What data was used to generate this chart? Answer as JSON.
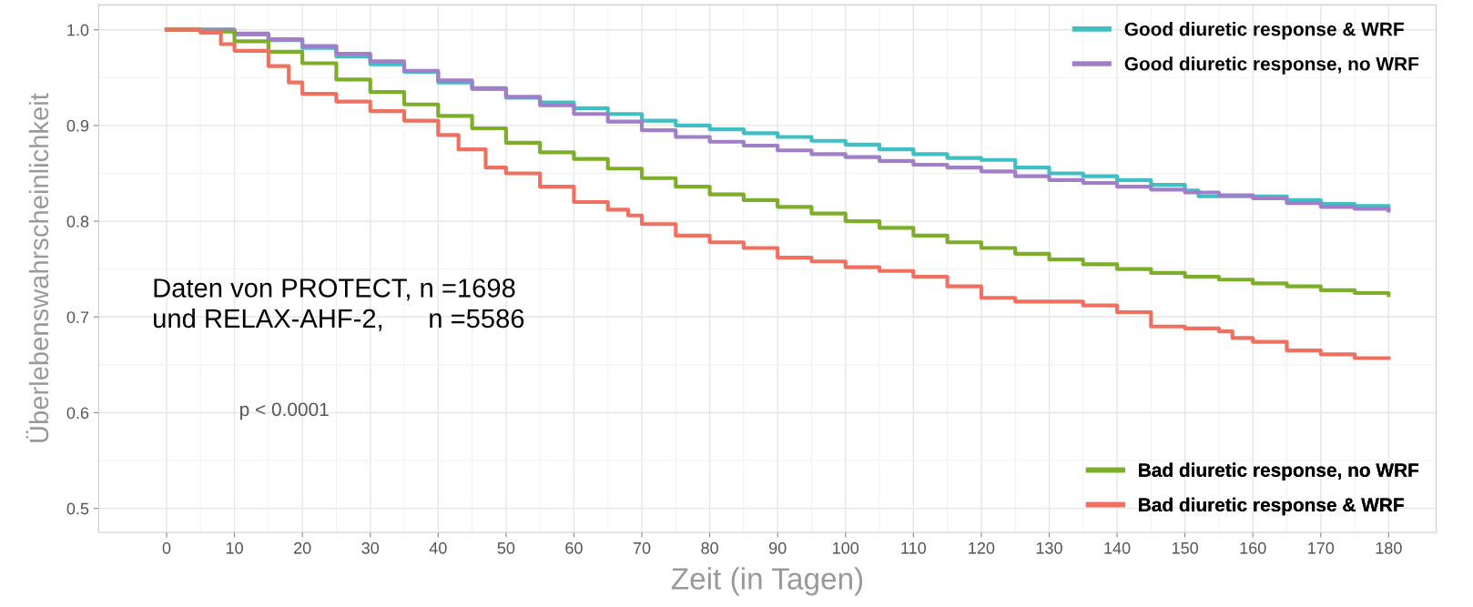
{
  "chart_data": {
    "type": "step",
    "xlabel": "Zeit (in Tagen)",
    "ylabel": "Überlebenswahrscheinlichkeit",
    "xlim": [
      -10,
      187
    ],
    "ylim": [
      0.475,
      1.026
    ],
    "xticks": [
      0,
      10,
      20,
      30,
      40,
      50,
      60,
      70,
      80,
      90,
      100,
      110,
      120,
      130,
      140,
      150,
      160,
      170,
      180
    ],
    "yticks": [
      {
        "value": 0.5,
        "label": "0.5"
      },
      {
        "value": 0.6,
        "label": "0.6"
      },
      {
        "value": 0.7,
        "label": "0.7"
      },
      {
        "value": 0.8,
        "label": "0.8"
      },
      {
        "value": 0.9,
        "label": "0.9"
      },
      {
        "value": 1.0,
        "label": "1.0"
      }
    ],
    "grid": true,
    "legend": [
      "top right",
      "bottom right"
    ],
    "line_style": "solid",
    "marker": "none",
    "annotations": [
      "Daten von PROTECT, n =1698\nund RELAX-AHF-2,      n =5586",
      "p < 0.0001"
    ],
    "series": [
      {
        "name": "Good diuretic response & WRF",
        "color": "#3fbfc4",
        "x": [
          0,
          5,
          10,
          15,
          20,
          25,
          30,
          35,
          40,
          45,
          50,
          55,
          60,
          65,
          70,
          75,
          80,
          85,
          90,
          95,
          100,
          105,
          110,
          115,
          120,
          125,
          130,
          135,
          140,
          145,
          150,
          152,
          160,
          165,
          170,
          175,
          180
        ],
        "values": [
          1.0,
          1.0,
          0.995,
          0.989,
          0.981,
          0.972,
          0.964,
          0.956,
          0.945,
          0.938,
          0.929,
          0.924,
          0.918,
          0.912,
          0.905,
          0.9,
          0.896,
          0.892,
          0.888,
          0.884,
          0.88,
          0.875,
          0.87,
          0.866,
          0.864,
          0.856,
          0.85,
          0.847,
          0.843,
          0.838,
          0.832,
          0.826,
          0.826,
          0.822,
          0.818,
          0.816,
          0.813
        ]
      },
      {
        "name": "Good diuretic response, no WRF",
        "color": "#a07fc8",
        "x": [
          0,
          5,
          10,
          15,
          20,
          25,
          30,
          35,
          40,
          45,
          50,
          55,
          60,
          65,
          70,
          75,
          80,
          85,
          90,
          95,
          100,
          105,
          110,
          115,
          120,
          125,
          130,
          135,
          140,
          145,
          150,
          155,
          160,
          165,
          170,
          175,
          180
        ],
        "values": [
          1.0,
          1.0,
          0.996,
          0.99,
          0.983,
          0.975,
          0.967,
          0.957,
          0.947,
          0.939,
          0.93,
          0.921,
          0.912,
          0.904,
          0.895,
          0.888,
          0.883,
          0.879,
          0.874,
          0.87,
          0.867,
          0.863,
          0.859,
          0.856,
          0.852,
          0.847,
          0.843,
          0.84,
          0.836,
          0.833,
          0.83,
          0.827,
          0.824,
          0.819,
          0.815,
          0.813,
          0.811
        ]
      },
      {
        "name": "Bad diuretic response, no WRF",
        "color": "#7cae2a",
        "x": [
          0,
          5,
          10,
          15,
          20,
          25,
          30,
          35,
          40,
          45,
          50,
          55,
          60,
          65,
          70,
          75,
          80,
          85,
          90,
          95,
          100,
          105,
          110,
          115,
          120,
          125,
          130,
          135,
          140,
          145,
          150,
          155,
          160,
          165,
          170,
          175,
          180
        ],
        "values": [
          1.0,
          0.998,
          0.988,
          0.977,
          0.965,
          0.948,
          0.935,
          0.922,
          0.91,
          0.897,
          0.882,
          0.872,
          0.865,
          0.855,
          0.845,
          0.836,
          0.828,
          0.822,
          0.815,
          0.808,
          0.8,
          0.793,
          0.785,
          0.778,
          0.772,
          0.766,
          0.76,
          0.755,
          0.75,
          0.746,
          0.742,
          0.739,
          0.735,
          0.732,
          0.728,
          0.725,
          0.723
        ]
      },
      {
        "name": "Bad diuretic response & WRF",
        "color": "#f07060",
        "x": [
          0,
          5,
          8,
          10,
          15,
          18,
          20,
          25,
          30,
          35,
          40,
          43,
          47,
          50,
          55,
          60,
          65,
          68,
          70,
          75,
          80,
          85,
          90,
          95,
          100,
          105,
          110,
          115,
          120,
          125,
          130,
          135,
          140,
          145,
          150,
          155,
          157,
          160,
          165,
          170,
          175,
          180
        ],
        "values": [
          1.0,
          0.997,
          0.985,
          0.978,
          0.962,
          0.945,
          0.933,
          0.925,
          0.915,
          0.905,
          0.89,
          0.875,
          0.856,
          0.85,
          0.836,
          0.82,
          0.812,
          0.806,
          0.797,
          0.785,
          0.778,
          0.772,
          0.762,
          0.758,
          0.752,
          0.748,
          0.742,
          0.732,
          0.72,
          0.716,
          0.716,
          0.712,
          0.705,
          0.69,
          0.688,
          0.685,
          0.678,
          0.674,
          0.665,
          0.661,
          0.657,
          0.657
        ]
      }
    ]
  }
}
